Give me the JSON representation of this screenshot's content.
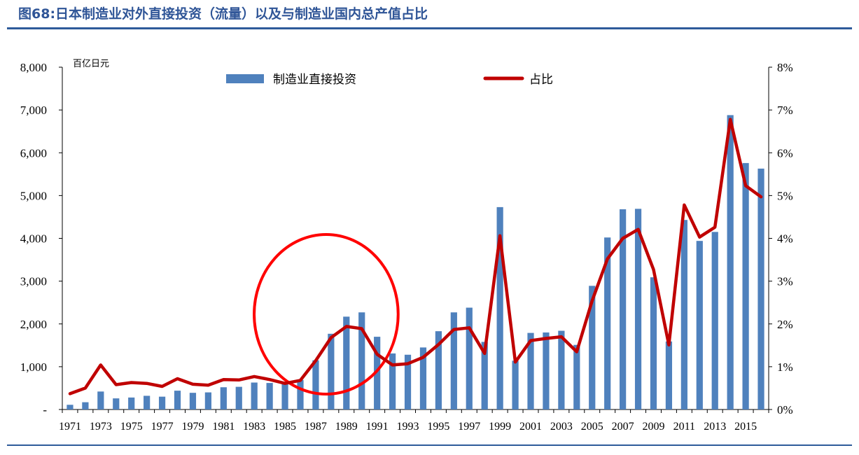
{
  "title": "图68:日本制造业对外直接投资（流量）以及与制造业国内总产值占比",
  "chart_data": {
    "type": "bar+line",
    "left_axis": {
      "unit": "百亿日元",
      "ylim": [
        0,
        8000
      ],
      "ticks": [
        0,
        1000,
        2000,
        3000,
        4000,
        5000,
        6000,
        7000,
        8000
      ],
      "tick_labels": [
        "-",
        "1,000",
        "2,000",
        "3,000",
        "4,000",
        "5,000",
        "6,000",
        "7,000",
        "8,000"
      ]
    },
    "right_axis": {
      "ylim": [
        0,
        8
      ],
      "ticks": [
        0,
        1,
        2,
        3,
        4,
        5,
        6,
        7,
        8
      ],
      "tick_labels": [
        "0%",
        "1%",
        "2%",
        "3%",
        "4%",
        "5%",
        "6%",
        "7%",
        "8%"
      ]
    },
    "categories": [
      1971,
      1972,
      1973,
      1974,
      1975,
      1976,
      1977,
      1978,
      1979,
      1980,
      1981,
      1982,
      1983,
      1984,
      1985,
      1986,
      1987,
      1988,
      1989,
      1990,
      1991,
      1992,
      1993,
      1994,
      1995,
      1996,
      1997,
      1998,
      1999,
      2000,
      2001,
      2002,
      2003,
      2004,
      2005,
      2006,
      2007,
      2008,
      2009,
      2010,
      2011,
      2012,
      2013,
      2014,
      2015,
      2016
    ],
    "x_tick_labels": [
      "1971",
      "1973",
      "1975",
      "1977",
      "1979",
      "1981",
      "1983",
      "1985",
      "1987",
      "1989",
      "1991",
      "1993",
      "1995",
      "1997",
      "1999",
      "2001",
      "2003",
      "2005",
      "2007",
      "2009",
      "2011",
      "2013",
      "2015"
    ],
    "series": [
      {
        "name": "制造业直接投资",
        "kind": "bar",
        "axis": "left",
        "color": "#4f81bd",
        "values": [
          110,
          170,
          420,
          260,
          280,
          320,
          300,
          440,
          390,
          400,
          520,
          530,
          630,
          620,
          640,
          690,
          1150,
          1770,
          2170,
          2270,
          1700,
          1310,
          1280,
          1450,
          1830,
          2270,
          2380,
          1580,
          4730,
          1140,
          1790,
          1800,
          1840,
          1510,
          2890,
          4020,
          4680,
          4690,
          3090,
          1590,
          4430,
          3940,
          4150,
          6880,
          5760,
          5630
        ]
      },
      {
        "name": "占比",
        "kind": "line",
        "axis": "right",
        "color": "#c00000",
        "values": [
          0.37,
          0.5,
          1.04,
          0.58,
          0.63,
          0.61,
          0.54,
          0.72,
          0.59,
          0.57,
          0.7,
          0.69,
          0.77,
          0.7,
          0.61,
          0.68,
          1.14,
          1.68,
          1.94,
          1.89,
          1.29,
          1.04,
          1.07,
          1.22,
          1.52,
          1.87,
          1.91,
          1.31,
          4.06,
          1.11,
          1.61,
          1.66,
          1.7,
          1.35,
          2.54,
          3.52,
          4.0,
          4.21,
          3.27,
          1.51,
          4.78,
          4.03,
          4.26,
          6.78,
          5.23,
          4.97
        ]
      }
    ],
    "annotation": {
      "shape": "ellipse",
      "color": "#ff0000",
      "around": [
        1985,
        1990
      ]
    },
    "legend_placement": "top",
    "grid": false
  }
}
